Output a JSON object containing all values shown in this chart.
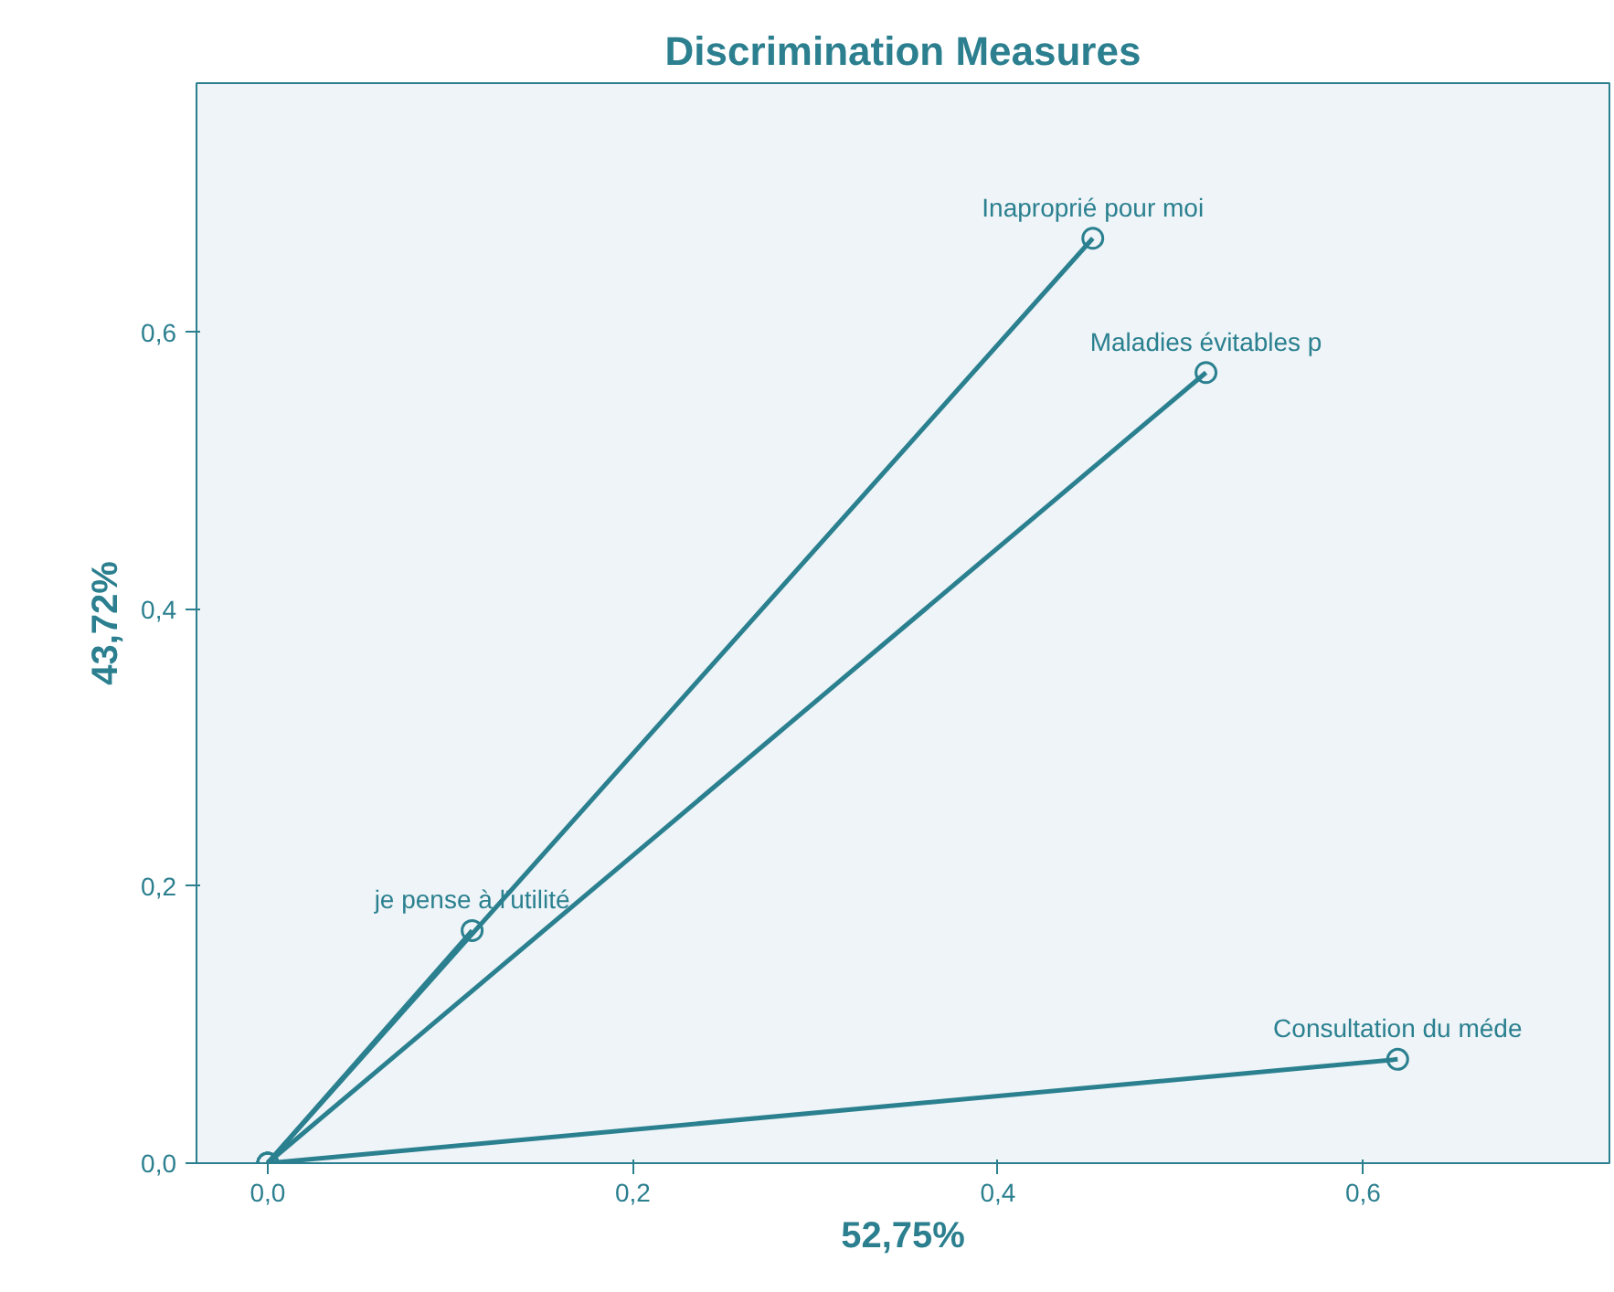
{
  "chart_data": {
    "type": "line",
    "title": "Discrimination Measures",
    "xlabel": "52,75%",
    "ylabel": "43,72%",
    "series": [
      {
        "name": "Inaproprié pour moi",
        "color": "#2b8090",
        "x": [
          0,
          0.452
        ],
        "values": [
          0,
          0.668
        ]
      },
      {
        "name": "Maladies évitables p",
        "color": "#2b8090",
        "x": [
          0,
          0.514
        ],
        "values": [
          0,
          0.571
        ]
      },
      {
        "name": "je pense à l'utilité",
        "color": "#2b8090",
        "x": [
          0,
          0.112
        ],
        "values": [
          0,
          0.168
        ]
      },
      {
        "name": "Consultation du méde",
        "color": "#2b8090",
        "x": [
          0,
          0.619
        ],
        "values": [
          0,
          0.075
        ]
      }
    ],
    "xlim": [
      -0.039,
      0.735
    ],
    "ylim": [
      0,
      0.78
    ],
    "xticks": [
      {
        "value": 0,
        "label": "0,0"
      },
      {
        "value": 0.2,
        "label": "0,2"
      },
      {
        "value": 0.4,
        "label": "0,4"
      },
      {
        "value": 0.6,
        "label": "0,6"
      }
    ],
    "yticks": [
      {
        "value": 0,
        "label": "0,0"
      },
      {
        "value": 0.2,
        "label": "0,2"
      },
      {
        "value": 0.4,
        "label": "0,4"
      },
      {
        "value": 0.6,
        "label": "0,6"
      }
    ],
    "marker": "circle",
    "line_style": "solid",
    "grid": false
  }
}
